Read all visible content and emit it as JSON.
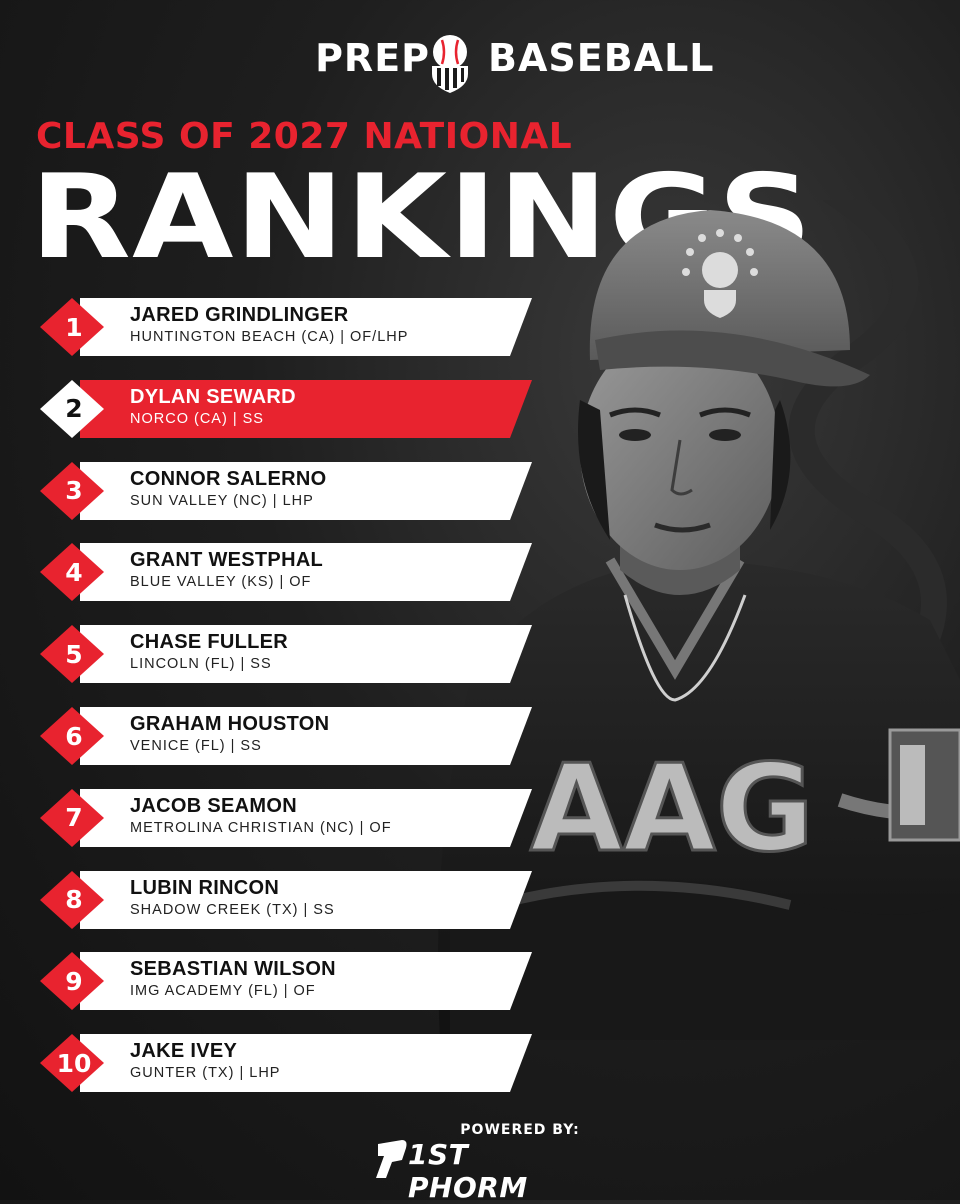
{
  "brand": {
    "word_left": "PREP",
    "word_right": "BASEBALL"
  },
  "header": {
    "class_line": "CLASS OF 2027 NATIONAL",
    "title": "RANKINGS"
  },
  "rankings": [
    {
      "rank": "1",
      "name": "JARED GRINDLINGER",
      "info": "HUNTINGTON BEACH (CA) | OF/LHP",
      "highlight": false
    },
    {
      "rank": "2",
      "name": "DYLAN SEWARD",
      "info": "NORCO (CA) | SS",
      "highlight": true
    },
    {
      "rank": "3",
      "name": "CONNOR SALERNO",
      "info": "SUN VALLEY (NC) | LHP",
      "highlight": false
    },
    {
      "rank": "4",
      "name": "GRANT WESTPHAL",
      "info": "BLUE VALLEY (KS) | OF",
      "highlight": false
    },
    {
      "rank": "5",
      "name": "CHASE FULLER",
      "info": "LINCOLN (FL) | SS",
      "highlight": false
    },
    {
      "rank": "6",
      "name": "GRAHAM HOUSTON",
      "info": "VENICE (FL) | SS",
      "highlight": false
    },
    {
      "rank": "7",
      "name": "JACOB SEAMON",
      "info": "METROLINA CHRISTIAN (NC) | OF",
      "highlight": false
    },
    {
      "rank": "8",
      "name": "LUBIN RINCON",
      "info": "SHADOW CREEK (TX) | SS",
      "highlight": false
    },
    {
      "rank": "9",
      "name": "SEBASTIAN WILSON",
      "info": "IMG ACADEMY (FL) | OF",
      "highlight": false
    },
    {
      "rank": "10",
      "name": "JAKE IVEY",
      "info": "GUNTER (TX) | LHP",
      "highlight": false
    }
  ],
  "jersey_lettering": "AAG",
  "footer": {
    "powered_by": "POWERED BY:",
    "sponsor": "1ST PHORM"
  },
  "colors": {
    "accent_red": "#e8232f",
    "row_white": "#ffffff",
    "background": "#1a1a1a"
  }
}
